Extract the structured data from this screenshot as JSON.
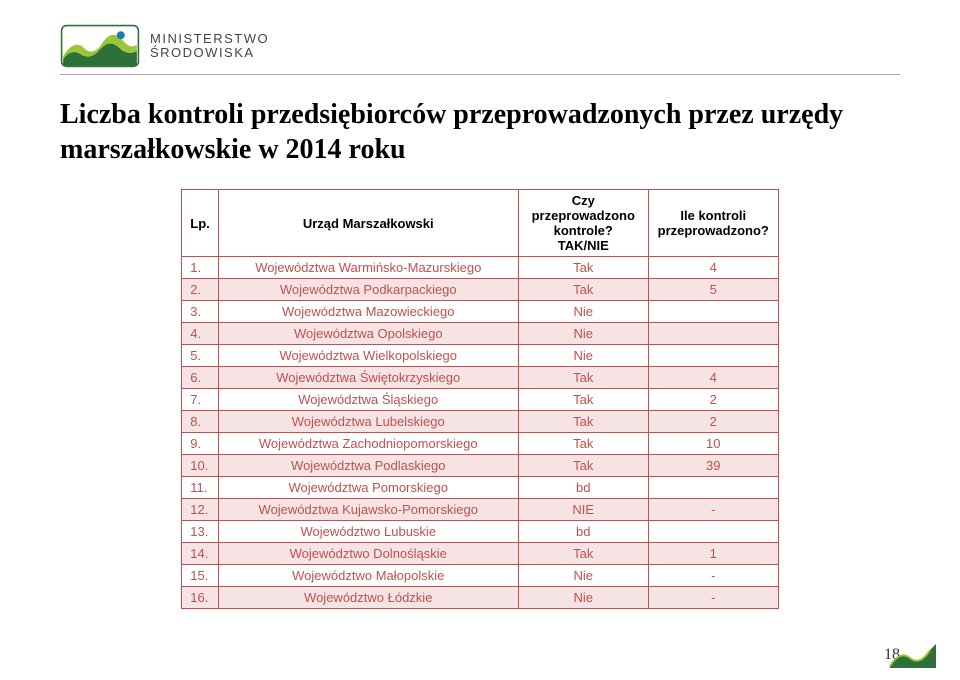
{
  "logo": {
    "line1": "MINISTERSTWO",
    "line2": "ŚRODOWISKA",
    "colors": {
      "dark_green": "#2f6f3a",
      "light_green": "#9ac63b",
      "blue": "#1e7bb8",
      "white": "#ffffff"
    }
  },
  "title": "Liczba kontroli przedsiębiorców przeprowadzonych przez urzędy marszałkowskie w 2014 roku",
  "table": {
    "border_color": "#c0504d",
    "row_text_color": "#c0504d",
    "thead_bg": "#ffffff",
    "thead_fg": "#000000",
    "row_bg_even": "#ffffff",
    "row_bg_odd": "#f5e4e3",
    "columns": {
      "lp": "Lp.",
      "name": "Urząd Marszałkowski",
      "q1": "Czy przeprowadzono kontrole?\nTAK/NIE",
      "q2": "Ile kontroli przeprowadzono?"
    },
    "rows": [
      {
        "lp": "1.",
        "name": "Województwa Warmińsko-Mazurskiego",
        "q1": "Tak",
        "q2": "4"
      },
      {
        "lp": "2.",
        "name": "Województwa Podkarpackiego",
        "q1": "Tak",
        "q2": "5"
      },
      {
        "lp": "3.",
        "name": "Województwa Mazowieckiego",
        "q1": "Nie",
        "q2": ""
      },
      {
        "lp": "4.",
        "name": "Województwa Opolskiego",
        "q1": "Nie",
        "q2": ""
      },
      {
        "lp": "5.",
        "name": "Województwa Wielkopolskiego",
        "q1": "Nie",
        "q2": ""
      },
      {
        "lp": "6.",
        "name": "Województwa Świętokrzyskiego",
        "q1": "Tak",
        "q2": "4"
      },
      {
        "lp": "7.",
        "name": "Województwa Śląskiego",
        "q1": "Tak",
        "q2": "2"
      },
      {
        "lp": "8.",
        "name": "Województwa Lubelskiego",
        "q1": "Tak",
        "q2": "2"
      },
      {
        "lp": "9.",
        "name": "Województwa Zachodniopomorskiego",
        "q1": "Tak",
        "q2": "10"
      },
      {
        "lp": "10.",
        "name": "Województwa Podlaskiego",
        "q1": "Tak",
        "q2": "39"
      },
      {
        "lp": "11.",
        "name": "Województwa Pomorskiego",
        "q1": "bd",
        "q2": ""
      },
      {
        "lp": "12.",
        "name": "Województwa Kujawsko-Pomorskiego",
        "q1": "NIE",
        "q2": "-"
      },
      {
        "lp": "13.",
        "name": "Województwo Lubuskie",
        "q1": "bd",
        "q2": ""
      },
      {
        "lp": "14.",
        "name": "Województwo Dolnośląskie",
        "q1": "Tak",
        "q2": "1"
      },
      {
        "lp": "15.",
        "name": "Województwo Małopolskie",
        "q1": "Nie",
        "q2": "-"
      },
      {
        "lp": "16.",
        "name": "Województwo Łódzkie",
        "q1": "Nie",
        "q2": "-"
      }
    ]
  },
  "page_number": "18",
  "corner_mark": {
    "color": "#2f6f3a"
  }
}
